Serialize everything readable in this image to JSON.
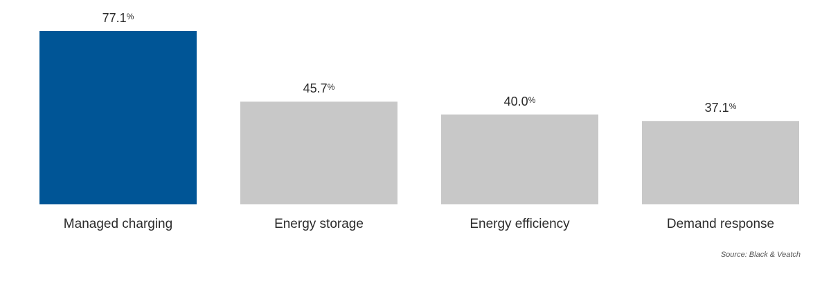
{
  "chart_data": {
    "type": "bar",
    "categories": [
      "Managed charging",
      "Energy storage",
      "Energy efficiency",
      "Demand response"
    ],
    "values": [
      77.1,
      45.7,
      40.0,
      37.1
    ],
    "value_labels": [
      "77.1",
      "45.7",
      "40.0",
      "37.1"
    ],
    "unit": "%",
    "colors": [
      "#005596",
      "#c8c8c8",
      "#c8c8c8",
      "#c8c8c8"
    ],
    "ylim": [
      0,
      77.1
    ],
    "grid": false,
    "legend": "none"
  },
  "source": "Source: Black & Veatch"
}
